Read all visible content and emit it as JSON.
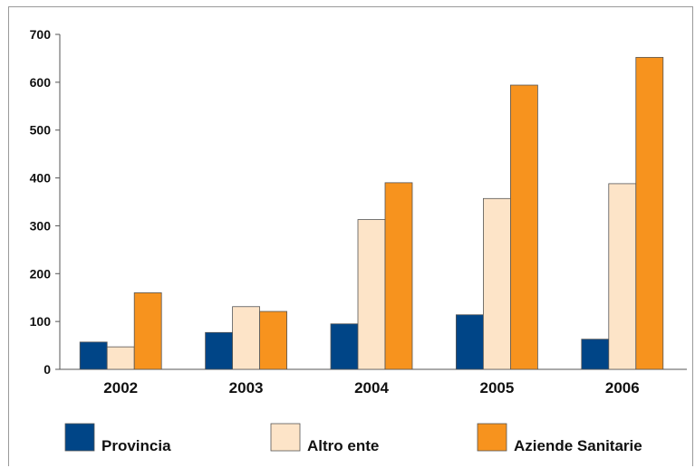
{
  "chart_data": {
    "type": "bar",
    "title": "",
    "xlabel": "",
    "ylabel": "",
    "ylim": [
      0,
      700
    ],
    "yticks": [
      0,
      100,
      200,
      300,
      400,
      500,
      600,
      700
    ],
    "grid": false,
    "legend_position": "bottom",
    "categories": [
      "2002",
      "2003",
      "2004",
      "2005",
      "2006"
    ],
    "series": [
      {
        "name": "Provincia",
        "color": "#004587",
        "values": [
          57,
          77,
          95,
          114,
          63
        ]
      },
      {
        "name": "Altro ente",
        "color": "#fde4c8",
        "values": [
          47,
          131,
          313,
          357,
          388
        ]
      },
      {
        "name": "Aziende Sanitarie",
        "color": "#f7931e",
        "values": [
          160,
          121,
          390,
          594,
          652
        ]
      }
    ]
  }
}
